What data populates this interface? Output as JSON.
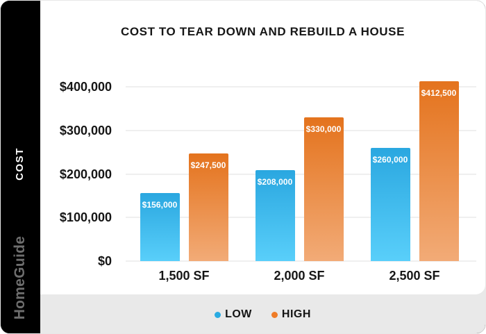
{
  "sidebar": {
    "logo_text": "HomeGuide"
  },
  "chart_data": {
    "type": "bar",
    "title": "COST TO TEAR DOWN AND REBUILD A HOUSE",
    "ylabel": "COST",
    "xlabel": "",
    "categories": [
      "1,500 SF",
      "2,000 SF",
      "2,500 SF"
    ],
    "series": [
      {
        "name": "LOW",
        "values": [
          156000,
          208000,
          260000
        ],
        "value_labels": [
          "$156,000",
          "$208,000",
          "$260,000"
        ],
        "gradient_top": "#2aa7e0",
        "gradient_bottom": "#59cffa",
        "legend_color": "#29abe2"
      },
      {
        "name": "HIGH",
        "values": [
          247500,
          330000,
          412500
        ],
        "value_labels": [
          "$247,500",
          "$330,000",
          "$412,500"
        ],
        "gradient_top": "#e4731d",
        "gradient_bottom": "#f2ab77",
        "legend_color": "#ef7c28"
      }
    ],
    "y_ticks": [
      {
        "value": 400000,
        "label": "$400,000"
      },
      {
        "value": 300000,
        "label": "$300,000"
      },
      {
        "value": 200000,
        "label": "$200,000"
      },
      {
        "value": 100000,
        "label": "$100,000"
      },
      {
        "value": 0,
        "label": "$0"
      }
    ],
    "ylim": [
      0,
      450000
    ],
    "grid": true,
    "legend_position": "bottom"
  }
}
